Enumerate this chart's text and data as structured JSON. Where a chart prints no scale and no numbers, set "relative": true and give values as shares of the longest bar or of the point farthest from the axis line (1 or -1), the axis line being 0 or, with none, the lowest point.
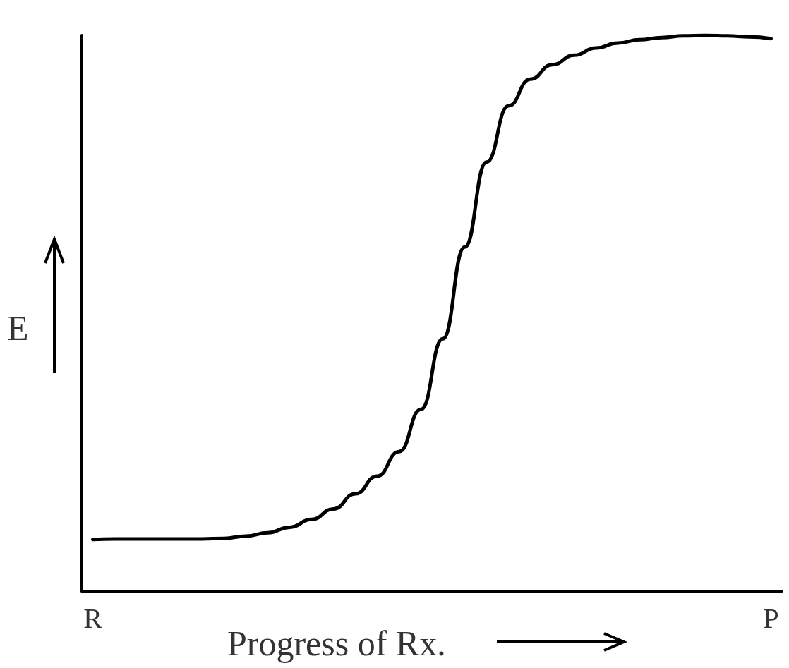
{
  "chart_data": {
    "type": "line",
    "relative": true,
    "xlabel": "Progress of Rx.",
    "ylabel": "E",
    "grid": false,
    "marker": "none",
    "line_style": "solid",
    "categories": [
      "R",
      null,
      null,
      null,
      null,
      null,
      null,
      null,
      null,
      null,
      null,
      null,
      null,
      null,
      null,
      null,
      null,
      null,
      null,
      null,
      null,
      null,
      null,
      null,
      null,
      null,
      null,
      null,
      null,
      null,
      null,
      "P"
    ],
    "series": [
      {
        "color": "#000000",
        "values": [
          0.093,
          0.094,
          0.094,
          0.094,
          0.094,
          0.094,
          0.095,
          0.099,
          0.105,
          0.115,
          0.129,
          0.148,
          0.175,
          0.207,
          0.251,
          0.327,
          0.454,
          0.619,
          0.772,
          0.873,
          0.921,
          0.947,
          0.964,
          0.977,
          0.986,
          0.992,
          0.996,
          0.999,
          1,
          0.999,
          0.997,
          0.994
        ]
      }
    ]
  }
}
